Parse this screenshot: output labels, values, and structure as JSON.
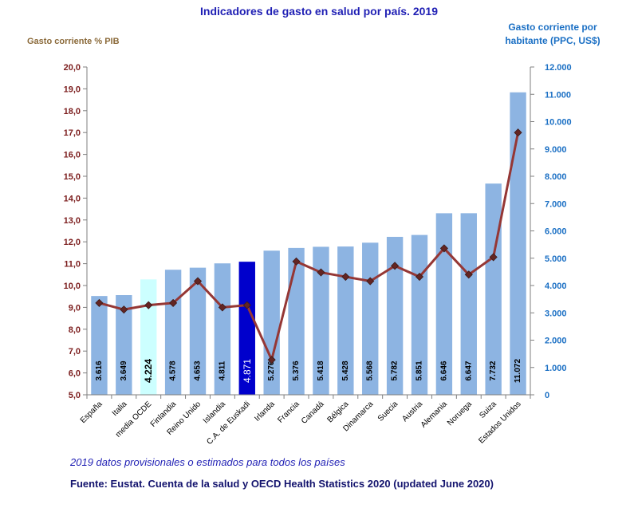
{
  "chart_data": {
    "type": "bar",
    "title": "Indicadores de gasto en salud por país. 2019",
    "left_axis_title": "Gasto corriente % PIB",
    "right_axis_title_line1": "Gasto corriente por",
    "right_axis_title_line2": "habitante (PPC, US$)",
    "categories": [
      "España",
      "Italia",
      "media OCDE",
      "Finlandia",
      "Reino Unido",
      "Islandia",
      "C.A. de Euskadi",
      "Irlanda",
      "Francia",
      "Canadá",
      "Bélgica",
      "Dinamarca",
      "Suecia",
      "Austria",
      "Alemania",
      "Noruega",
      "Suiza",
      "Estados Unidos"
    ],
    "left_ylim": [
      5,
      20
    ],
    "left_ticks": [
      "5,0",
      "6,0",
      "7,0",
      "8,0",
      "9,0",
      "10,0",
      "11,0",
      "12,0",
      "13,0",
      "14,0",
      "15,0",
      "16,0",
      "17,0",
      "18,0",
      "19,0",
      "20,0"
    ],
    "right_ylim": [
      0,
      12000
    ],
    "right_ticks": [
      "0",
      "1.000",
      "2.000",
      "3.000",
      "4.000",
      "5.000",
      "6.000",
      "7.000",
      "8.000",
      "9.000",
      "10.000",
      "11.000",
      "12.000"
    ],
    "series": [
      {
        "type": "bar",
        "axis": "right",
        "values": [
          3616,
          3649,
          4224,
          4578,
          4653,
          4811,
          4871,
          5276,
          5376,
          5418,
          5428,
          5568,
          5782,
          5851,
          6646,
          6647,
          7732,
          11072
        ],
        "labels": [
          "3.616",
          "3.649",
          "4.224",
          "4.578",
          "4.653",
          "4.811",
          "4.871",
          "5.276",
          "5.376",
          "5.418",
          "5.428",
          "5.568",
          "5.782",
          "5.851",
          "6.646",
          "6.647",
          "7.732",
          "11.072"
        ]
      },
      {
        "type": "line",
        "axis": "left",
        "values": [
          9.2,
          8.9,
          9.1,
          9.2,
          10.2,
          9.0,
          9.1,
          6.6,
          11.1,
          10.6,
          10.4,
          10.2,
          10.9,
          10.4,
          11.7,
          10.5,
          11.3,
          17.0
        ]
      }
    ],
    "colors": {
      "bar": "#8db4e2",
      "bar_ocde": "#ccffff",
      "bar_euskadi": "#0000cc",
      "line": "#953735",
      "marker": "#632523",
      "left_axis_text": "#7b1c1c",
      "right_axis_text": "#1a6fc4"
    }
  },
  "footer": {
    "note": "2019 datos provisionales o estimados para todos los países",
    "source": "Fuente: Eustat. Cuenta de la salud y OECD  Health Statistics 2020 (updated June 2020)"
  }
}
